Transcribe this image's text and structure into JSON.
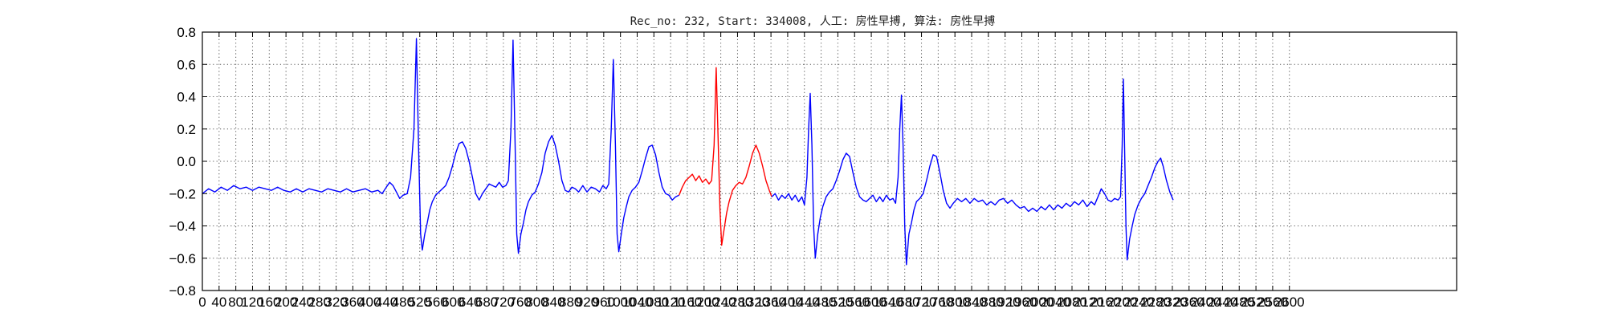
{
  "chart_data": {
    "type": "line",
    "title": "Rec_no: 232, Start: 334008, 人工: 房性早搏, 算法: 房性早搏",
    "xlabel": "",
    "ylabel": "",
    "xlim": [
      0,
      3000
    ],
    "ylim": [
      -0.8,
      0.8
    ],
    "xticks": [
      0,
      40,
      80,
      120,
      160,
      200,
      240,
      280,
      320,
      360,
      400,
      440,
      480,
      520,
      560,
      600,
      640,
      680,
      720,
      760,
      800,
      840,
      880,
      920,
      960,
      1000,
      1040,
      1080,
      1120,
      1160,
      1200,
      1240,
      1280,
      1320,
      1360,
      1400,
      1440,
      1480,
      1520,
      1560,
      1600,
      1640,
      1680,
      1720,
      1760,
      1800,
      1840,
      1880,
      1920,
      1960,
      2000,
      2040,
      2080,
      2120,
      2160,
      2200,
      2240,
      2280,
      2320,
      2360,
      2400,
      2440,
      2480,
      2520,
      2560,
      2600
    ],
    "yticks": [
      -0.8,
      -0.6,
      -0.4,
      -0.2,
      0.0,
      0.2,
      0.4,
      0.6,
      0.8
    ],
    "ytick_labels": [
      "−0.8",
      "−0.6",
      "−0.4",
      "−0.2",
      "0.0",
      "0.2",
      "0.4",
      "0.6",
      "0.8"
    ],
    "grid": true,
    "series": [
      {
        "color": "#0000ff",
        "points": [
          [
            0,
            -0.2
          ],
          [
            15,
            -0.17
          ],
          [
            30,
            -0.19
          ],
          [
            45,
            -0.16
          ],
          [
            60,
            -0.18
          ],
          [
            75,
            -0.15
          ],
          [
            90,
            -0.17
          ],
          [
            105,
            -0.16
          ],
          [
            120,
            -0.18
          ],
          [
            135,
            -0.16
          ],
          [
            150,
            -0.17
          ],
          [
            165,
            -0.18
          ],
          [
            180,
            -0.16
          ],
          [
            195,
            -0.18
          ],
          [
            210,
            -0.19
          ],
          [
            225,
            -0.17
          ],
          [
            240,
            -0.19
          ],
          [
            255,
            -0.17
          ],
          [
            270,
            -0.18
          ],
          [
            285,
            -0.19
          ],
          [
            300,
            -0.17
          ],
          [
            315,
            -0.18
          ],
          [
            330,
            -0.19
          ],
          [
            345,
            -0.17
          ],
          [
            360,
            -0.19
          ],
          [
            375,
            -0.18
          ],
          [
            390,
            -0.17
          ],
          [
            405,
            -0.19
          ],
          [
            420,
            -0.18
          ],
          [
            430,
            -0.2
          ],
          [
            440,
            -0.16
          ],
          [
            448,
            -0.13
          ],
          [
            456,
            -0.15
          ],
          [
            464,
            -0.19
          ],
          [
            472,
            -0.23
          ],
          [
            480,
            -0.21
          ],
          [
            490,
            -0.2
          ],
          [
            498,
            -0.1
          ],
          [
            506,
            0.2
          ],
          [
            512,
            0.76
          ],
          [
            517,
            0.1
          ],
          [
            522,
            -0.45
          ],
          [
            526,
            -0.55
          ],
          [
            532,
            -0.45
          ],
          [
            538,
            -0.38
          ],
          [
            544,
            -0.3
          ],
          [
            550,
            -0.25
          ],
          [
            558,
            -0.21
          ],
          [
            566,
            -0.19
          ],
          [
            574,
            -0.17
          ],
          [
            582,
            -0.15
          ],
          [
            590,
            -0.1
          ],
          [
            598,
            -0.03
          ],
          [
            606,
            0.05
          ],
          [
            614,
            0.11
          ],
          [
            622,
            0.12
          ],
          [
            630,
            0.08
          ],
          [
            638,
            0.0
          ],
          [
            646,
            -0.1
          ],
          [
            654,
            -0.2
          ],
          [
            662,
            -0.24
          ],
          [
            670,
            -0.2
          ],
          [
            678,
            -0.17
          ],
          [
            686,
            -0.14
          ],
          [
            694,
            -0.15
          ],
          [
            702,
            -0.16
          ],
          [
            710,
            -0.13
          ],
          [
            718,
            -0.16
          ],
          [
            726,
            -0.15
          ],
          [
            732,
            -0.12
          ],
          [
            738,
            0.2
          ],
          [
            743,
            0.75
          ],
          [
            748,
            0.1
          ],
          [
            752,
            -0.45
          ],
          [
            756,
            -0.57
          ],
          [
            762,
            -0.45
          ],
          [
            768,
            -0.38
          ],
          [
            774,
            -0.3
          ],
          [
            780,
            -0.25
          ],
          [
            788,
            -0.21
          ],
          [
            796,
            -0.19
          ],
          [
            804,
            -0.14
          ],
          [
            812,
            -0.07
          ],
          [
            820,
            0.05
          ],
          [
            828,
            0.12
          ],
          [
            836,
            0.16
          ],
          [
            844,
            0.1
          ],
          [
            852,
            0.0
          ],
          [
            860,
            -0.12
          ],
          [
            868,
            -0.18
          ],
          [
            876,
            -0.19
          ],
          [
            884,
            -0.16
          ],
          [
            892,
            -0.17
          ],
          [
            900,
            -0.19
          ],
          [
            910,
            -0.15
          ],
          [
            920,
            -0.19
          ],
          [
            930,
            -0.16
          ],
          [
            940,
            -0.17
          ],
          [
            950,
            -0.19
          ],
          [
            958,
            -0.15
          ],
          [
            966,
            -0.17
          ],
          [
            972,
            -0.14
          ],
          [
            978,
            0.2
          ],
          [
            983,
            0.63
          ],
          [
            988,
            0.1
          ],
          [
            992,
            -0.45
          ],
          [
            996,
            -0.56
          ],
          [
            1002,
            -0.45
          ],
          [
            1008,
            -0.35
          ],
          [
            1014,
            -0.28
          ],
          [
            1020,
            -0.22
          ],
          [
            1028,
            -0.18
          ],
          [
            1036,
            -0.16
          ],
          [
            1044,
            -0.13
          ],
          [
            1052,
            -0.06
          ],
          [
            1060,
            0.02
          ],
          [
            1068,
            0.09
          ],
          [
            1076,
            0.1
          ],
          [
            1084,
            0.04
          ],
          [
            1092,
            -0.07
          ],
          [
            1100,
            -0.16
          ],
          [
            1108,
            -0.2
          ],
          [
            1116,
            -0.21
          ],
          [
            1124,
            -0.24
          ],
          [
            1132,
            -0.22
          ],
          [
            1140,
            -0.21
          ]
        ]
      },
      {
        "color": "#ff0000",
        "points": [
          [
            1140,
            -0.21
          ],
          [
            1148,
            -0.16
          ],
          [
            1156,
            -0.12
          ],
          [
            1164,
            -0.1
          ],
          [
            1172,
            -0.08
          ],
          [
            1180,
            -0.12
          ],
          [
            1188,
            -0.09
          ],
          [
            1196,
            -0.13
          ],
          [
            1204,
            -0.11
          ],
          [
            1212,
            -0.14
          ],
          [
            1218,
            -0.12
          ],
          [
            1224,
            0.1
          ],
          [
            1229,
            0.58
          ],
          [
            1234,
            0.1
          ],
          [
            1238,
            -0.3
          ],
          [
            1242,
            -0.52
          ],
          [
            1248,
            -0.42
          ],
          [
            1254,
            -0.32
          ],
          [
            1260,
            -0.25
          ],
          [
            1268,
            -0.18
          ],
          [
            1276,
            -0.15
          ],
          [
            1284,
            -0.13
          ],
          [
            1292,
            -0.14
          ],
          [
            1300,
            -0.1
          ],
          [
            1308,
            -0.03
          ],
          [
            1316,
            0.05
          ],
          [
            1324,
            0.1
          ],
          [
            1332,
            0.05
          ],
          [
            1340,
            -0.03
          ],
          [
            1348,
            -0.12
          ],
          [
            1356,
            -0.18
          ],
          [
            1362,
            -0.22
          ]
        ]
      },
      {
        "color": "#0000ff",
        "points": [
          [
            1362,
            -0.22
          ],
          [
            1370,
            -0.2
          ],
          [
            1378,
            -0.24
          ],
          [
            1386,
            -0.21
          ],
          [
            1394,
            -0.23
          ],
          [
            1402,
            -0.2
          ],
          [
            1410,
            -0.24
          ],
          [
            1418,
            -0.21
          ],
          [
            1426,
            -0.25
          ],
          [
            1434,
            -0.22
          ],
          [
            1440,
            -0.27
          ],
          [
            1446,
            -0.1
          ],
          [
            1450,
            0.2
          ],
          [
            1454,
            0.42
          ],
          [
            1458,
            0.1
          ],
          [
            1462,
            -0.4
          ],
          [
            1466,
            -0.6
          ],
          [
            1472,
            -0.45
          ],
          [
            1478,
            -0.35
          ],
          [
            1484,
            -0.28
          ],
          [
            1492,
            -0.22
          ],
          [
            1500,
            -0.19
          ],
          [
            1508,
            -0.17
          ],
          [
            1516,
            -0.12
          ],
          [
            1524,
            -0.06
          ],
          [
            1532,
            0.01
          ],
          [
            1540,
            0.05
          ],
          [
            1548,
            0.03
          ],
          [
            1556,
            -0.07
          ],
          [
            1564,
            -0.16
          ],
          [
            1572,
            -0.22
          ],
          [
            1580,
            -0.24
          ],
          [
            1588,
            -0.25
          ],
          [
            1596,
            -0.23
          ],
          [
            1604,
            -0.21
          ],
          [
            1612,
            -0.25
          ],
          [
            1620,
            -0.22
          ],
          [
            1628,
            -0.25
          ],
          [
            1636,
            -0.21
          ],
          [
            1644,
            -0.24
          ],
          [
            1652,
            -0.23
          ],
          [
            1658,
            -0.26
          ],
          [
            1664,
            -0.1
          ],
          [
            1668,
            0.2
          ],
          [
            1672,
            0.41
          ],
          [
            1676,
            0.1
          ],
          [
            1680,
            -0.4
          ],
          [
            1684,
            -0.64
          ],
          [
            1690,
            -0.45
          ],
          [
            1696,
            -0.38
          ],
          [
            1702,
            -0.3
          ],
          [
            1708,
            -0.25
          ],
          [
            1716,
            -0.23
          ],
          [
            1724,
            -0.2
          ],
          [
            1732,
            -0.12
          ],
          [
            1740,
            -0.03
          ],
          [
            1748,
            0.04
          ],
          [
            1756,
            0.03
          ],
          [
            1764,
            -0.07
          ],
          [
            1772,
            -0.18
          ],
          [
            1780,
            -0.26
          ],
          [
            1788,
            -0.29
          ],
          [
            1796,
            -0.26
          ],
          [
            1806,
            -0.23
          ],
          [
            1816,
            -0.25
          ],
          [
            1826,
            -0.23
          ],
          [
            1836,
            -0.26
          ],
          [
            1846,
            -0.23
          ],
          [
            1856,
            -0.25
          ],
          [
            1866,
            -0.24
          ],
          [
            1876,
            -0.27
          ],
          [
            1886,
            -0.25
          ],
          [
            1896,
            -0.27
          ],
          [
            1906,
            -0.24
          ],
          [
            1916,
            -0.23
          ],
          [
            1926,
            -0.26
          ],
          [
            1936,
            -0.24
          ],
          [
            1946,
            -0.27
          ],
          [
            1956,
            -0.29
          ],
          [
            1966,
            -0.28
          ],
          [
            1976,
            -0.31
          ],
          [
            1986,
            -0.29
          ],
          [
            1996,
            -0.31
          ],
          [
            2006,
            -0.28
          ],
          [
            2016,
            -0.3
          ],
          [
            2026,
            -0.27
          ],
          [
            2036,
            -0.3
          ],
          [
            2046,
            -0.27
          ],
          [
            2056,
            -0.29
          ],
          [
            2066,
            -0.26
          ],
          [
            2076,
            -0.28
          ],
          [
            2086,
            -0.25
          ],
          [
            2096,
            -0.27
          ],
          [
            2106,
            -0.24
          ],
          [
            2116,
            -0.28
          ],
          [
            2126,
            -0.25
          ],
          [
            2134,
            -0.27
          ],
          [
            2142,
            -0.22
          ],
          [
            2150,
            -0.17
          ],
          [
            2158,
            -0.2
          ],
          [
            2166,
            -0.24
          ],
          [
            2174,
            -0.25
          ],
          [
            2182,
            -0.23
          ],
          [
            2190,
            -0.24
          ],
          [
            2196,
            -0.22
          ],
          [
            2200,
            0.1
          ],
          [
            2203,
            0.51
          ],
          [
            2206,
            0.05
          ],
          [
            2209,
            -0.4
          ],
          [
            2212,
            -0.61
          ],
          [
            2218,
            -0.48
          ],
          [
            2224,
            -0.4
          ],
          [
            2230,
            -0.33
          ],
          [
            2238,
            -0.27
          ],
          [
            2246,
            -0.23
          ],
          [
            2254,
            -0.2
          ],
          [
            2262,
            -0.15
          ],
          [
            2270,
            -0.1
          ],
          [
            2278,
            -0.04
          ],
          [
            2286,
            0.0
          ],
          [
            2292,
            0.02
          ],
          [
            2298,
            -0.03
          ],
          [
            2306,
            -0.12
          ],
          [
            2314,
            -0.19
          ],
          [
            2322,
            -0.24
          ]
        ]
      }
    ]
  }
}
